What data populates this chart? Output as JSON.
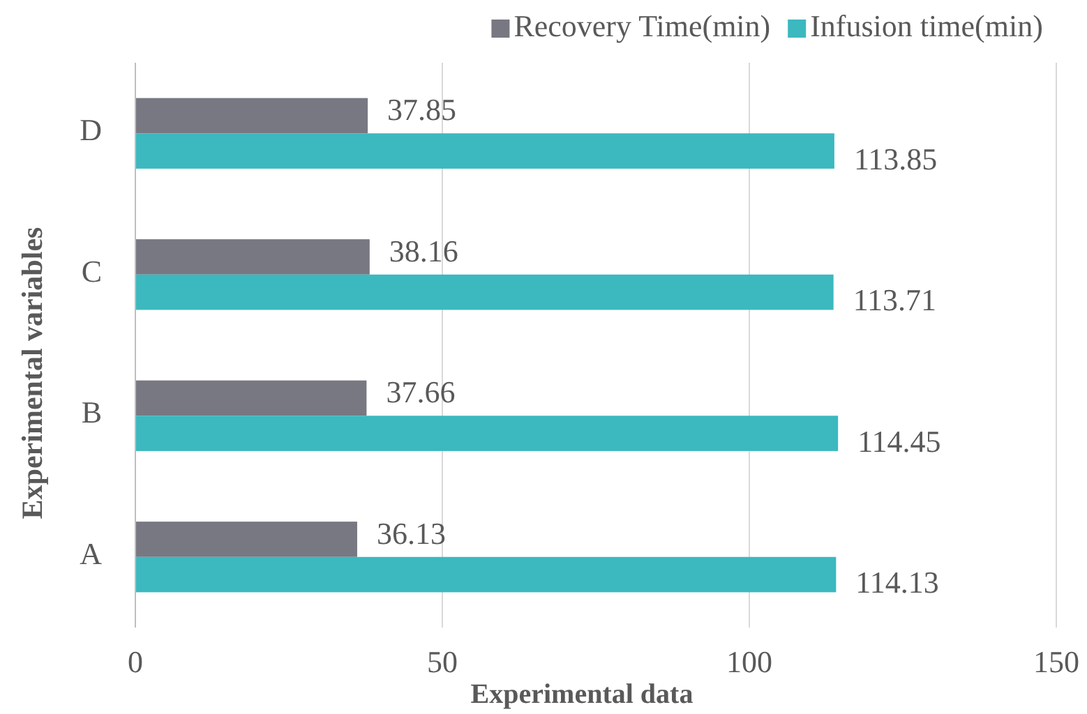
{
  "chart_data": {
    "type": "bar",
    "orientation": "horizontal",
    "xlabel": "Experimental data",
    "ylabel": "Experimental variables",
    "categories": [
      "D",
      "C",
      "B",
      "A"
    ],
    "series": [
      {
        "name": "Recovery Time(min)",
        "color": "#787882",
        "values": [
          37.85,
          38.16,
          37.66,
          36.13
        ]
      },
      {
        "name": "Infusion time(min)",
        "color": "#3cb8bf",
        "values": [
          113.85,
          113.71,
          114.45,
          114.13
        ]
      }
    ],
    "xlim": [
      0,
      150
    ],
    "xticks": [
      0,
      50,
      100,
      150
    ],
    "grid": "x",
    "legend": "top right",
    "data_labels": true
  }
}
